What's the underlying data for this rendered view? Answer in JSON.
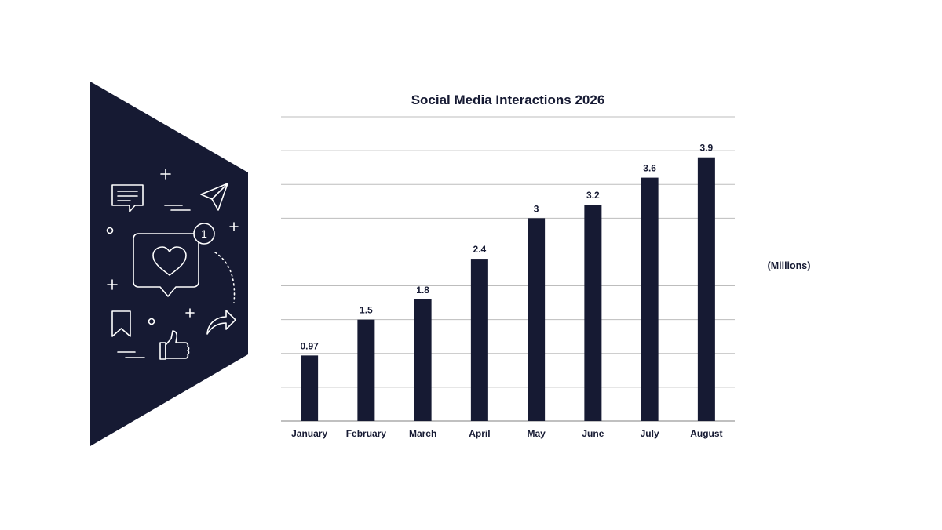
{
  "colors": {
    "primary": "#161a33",
    "grid": "#bdbdbd",
    "background": "#ffffff",
    "icon_stroke": "#ffffff"
  },
  "icons": [
    "chat-bubble-icon",
    "send-icon",
    "heart-notification-icon",
    "bookmark-icon",
    "thumbs-up-icon",
    "share-arrow-icon",
    "plus-icon",
    "circle-icon",
    "dash-lines-icon"
  ],
  "notification_count": "1",
  "chart_data": {
    "type": "bar",
    "title": "Social Media Interactions 2026",
    "unit_label": "(Millions)",
    "categories": [
      "January",
      "February",
      "March",
      "April",
      "May",
      "June",
      "July",
      "August"
    ],
    "values": [
      0.97,
      1.5,
      1.8,
      2.4,
      3,
      3.2,
      3.6,
      3.9
    ],
    "value_labels": [
      "0.97",
      "1.5",
      "1.8",
      "2.4",
      "3",
      "3.2",
      "3.6",
      "3.9"
    ],
    "xlabel": "",
    "ylabel": "",
    "ylim": [
      0,
      4.5
    ],
    "grid": true,
    "legend": "none"
  }
}
